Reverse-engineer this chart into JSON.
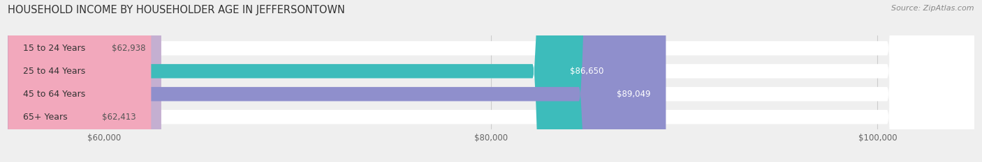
{
  "title": "HOUSEHOLD INCOME BY HOUSEHOLDER AGE IN JEFFERSONTOWN",
  "source": "Source: ZipAtlas.com",
  "categories": [
    "15 to 24 Years",
    "25 to 44 Years",
    "45 to 64 Years",
    "65+ Years"
  ],
  "values": [
    62938,
    86650,
    89049,
    62413
  ],
  "bar_colors": [
    "#c4afd1",
    "#3dbcbb",
    "#8f8fcc",
    "#f2a8bc"
  ],
  "value_label_colors": [
    "#555555",
    "#ffffff",
    "#ffffff",
    "#555555"
  ],
  "xlim_min": 55000,
  "xlim_max": 105000,
  "xticks": [
    60000,
    80000,
    100000
  ],
  "xtick_labels": [
    "$60,000",
    "$80,000",
    "$100,000"
  ],
  "bar_height": 0.62,
  "background_color": "#efefef",
  "bar_bg_color": "#ffffff",
  "title_fontsize": 10.5,
  "source_fontsize": 8,
  "value_fontsize": 8.5,
  "cat_fontsize": 9,
  "tick_fontsize": 8.5
}
